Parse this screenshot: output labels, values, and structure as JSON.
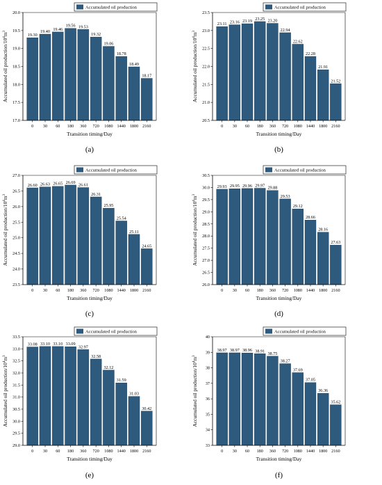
{
  "colors": {
    "bar": "#2e5a7e",
    "axis": "#000000",
    "background": "#ffffff"
  },
  "chart_data": [
    {
      "panel_label": "(a)",
      "type": "bar",
      "legend_label": "Accumulated oil production",
      "legend_position": "top-right",
      "grid": false,
      "xlabel": "Transition timing/Day",
      "ylabel": "Accumulated oil production/10",
      "ylabel_sup": "4",
      "ylabel_unit": "m",
      "ylabel_unit_sup": "3",
      "categories": [
        "0",
        "30",
        "60",
        "180",
        "360",
        "720",
        "1080",
        "1440",
        "1800",
        "2160"
      ],
      "values": [
        19.3,
        19.4,
        19.46,
        19.56,
        19.53,
        19.32,
        19.06,
        18.78,
        18.49,
        18.17
      ],
      "value_labels": [
        "19.30",
        "19.40",
        "19.46",
        "19.56",
        "19.53",
        "19.32",
        "19.06",
        "18.78",
        "18.49",
        "18.17"
      ],
      "ylim": [
        17.0,
        20.0
      ],
      "yticks": [
        "17.0",
        "17.5",
        "18.0",
        "18.5",
        "19.0",
        "19.5",
        "20.0"
      ]
    },
    {
      "panel_label": "(b)",
      "type": "bar",
      "legend_label": "Accumulated oil production",
      "legend_position": "top-right",
      "grid": false,
      "xlabel": "Transition timing/Day",
      "ylabel": "Accumulated oil production/10",
      "ylabel_sup": "4",
      "ylabel_unit": "m",
      "ylabel_unit_sup": "3",
      "categories": [
        "0",
        "30",
        "60",
        "180",
        "360",
        "720",
        "1080",
        "1440",
        "1800",
        "2160"
      ],
      "values": [
        23.11,
        23.16,
        23.19,
        23.25,
        23.2,
        22.94,
        22.62,
        22.28,
        21.91,
        21.52
      ],
      "value_labels": [
        "23.11",
        "23.16",
        "23.19",
        "23.25",
        "23.20",
        "22.94",
        "22.62",
        "22.28",
        "21.91",
        "21.52"
      ],
      "ylim": [
        20.5,
        23.5
      ],
      "yticks": [
        "20.5",
        "21.0",
        "21.5",
        "22.0",
        "22.5",
        "23.0",
        "23.5"
      ]
    },
    {
      "panel_label": "(c)",
      "type": "bar",
      "legend_label": "Accumulated oil production",
      "legend_position": "top-right",
      "grid": false,
      "xlabel": "Transition timing/Day",
      "ylabel": "Accumulated oil production/10",
      "ylabel_sup": "4",
      "ylabel_unit": "m",
      "ylabel_unit_sup": "3",
      "categories": [
        "0",
        "30",
        "60",
        "180",
        "360",
        "720",
        "1080",
        "1440",
        "1800",
        "2160"
      ],
      "values": [
        26.6,
        26.63,
        26.65,
        26.69,
        26.61,
        26.31,
        25.95,
        25.54,
        25.11,
        24.65
      ],
      "value_labels": [
        "26.60",
        "26.63",
        "26.65",
        "26.69",
        "26.61",
        "26.31",
        "25.95",
        "25.54",
        "25.11",
        "24.65"
      ],
      "ylim": [
        23.5,
        27.0
      ],
      "yticks": [
        "23.5",
        "24.0",
        "24.5",
        "25.0",
        "25.5",
        "26.0",
        "26.5",
        "27.0"
      ]
    },
    {
      "panel_label": "(d)",
      "type": "bar",
      "legend_label": "Accumulated oil production",
      "legend_position": "top-right",
      "grid": false,
      "xlabel": "Transition timing/Day",
      "ylabel": "Accumulated oil production/10",
      "ylabel_sup": "4",
      "ylabel_unit": "m",
      "ylabel_unit_sup": "3",
      "categories": [
        "0",
        "30",
        "60",
        "180",
        "360",
        "720",
        "1080",
        "1440",
        "1800",
        "2160"
      ],
      "values": [
        29.93,
        29.95,
        29.96,
        29.97,
        29.88,
        29.53,
        29.12,
        28.66,
        28.16,
        27.63
      ],
      "value_labels": [
        "29.93",
        "29.95",
        "29.96",
        "29.97",
        "29.88",
        "29.53",
        "29.12",
        "28.66",
        "28.16",
        "27.63"
      ],
      "ylim": [
        26.0,
        30.5
      ],
      "yticks": [
        "26.0",
        "26.5",
        "27.0",
        "27.5",
        "28.0",
        "28.5",
        "29.0",
        "29.5",
        "30.0",
        "30.5"
      ]
    },
    {
      "panel_label": "(e)",
      "type": "bar",
      "legend_label": "Accumulated oil production",
      "legend_position": "top-right",
      "grid": false,
      "xlabel": "Transition timing/Day",
      "ylabel": "Accumulated oil production/10",
      "ylabel_sup": "4",
      "ylabel_unit": "m",
      "ylabel_unit_sup": "3",
      "categories": [
        "0",
        "30",
        "60",
        "180",
        "360",
        "720",
        "1080",
        "1440",
        "1800",
        "2160"
      ],
      "values": [
        33.08,
        33.1,
        33.1,
        33.09,
        32.97,
        32.58,
        32.12,
        31.59,
        31.03,
        30.42
      ],
      "value_labels": [
        "33.08",
        "33.10",
        "33.10",
        "33.09",
        "32.97",
        "32.58",
        "32.12",
        "31.59",
        "31.03",
        "30.42"
      ],
      "ylim": [
        29.0,
        33.5
      ],
      "yticks": [
        "29.0",
        "29.5",
        "30.0",
        "30.5",
        "31.0",
        "31.5",
        "32.0",
        "32.5",
        "33.0",
        "33.5"
      ]
    },
    {
      "panel_label": "(f)",
      "type": "bar",
      "legend_label": "Accumulated oil production",
      "legend_position": "top-right",
      "grid": false,
      "xlabel": "Transition timing/Day",
      "ylabel": "Accumulated oil production/10",
      "ylabel_sup": "4",
      "ylabel_unit": "m",
      "ylabel_unit_sup": "3",
      "categories": [
        "0",
        "30",
        "60",
        "180",
        "360",
        "720",
        "1080",
        "1440",
        "1800",
        "2160"
      ],
      "values": [
        38.97,
        38.97,
        38.96,
        38.91,
        38.75,
        38.27,
        37.69,
        37.05,
        36.36,
        35.62
      ],
      "value_labels": [
        "38.97",
        "38.97",
        "38.96",
        "38.91",
        "38.75",
        "38.27",
        "37.69",
        "37.05",
        "36.36",
        "35.62"
      ],
      "ylim": [
        33,
        40
      ],
      "yticks": [
        "33",
        "34",
        "35",
        "36",
        "37",
        "38",
        "39",
        "40"
      ]
    }
  ]
}
